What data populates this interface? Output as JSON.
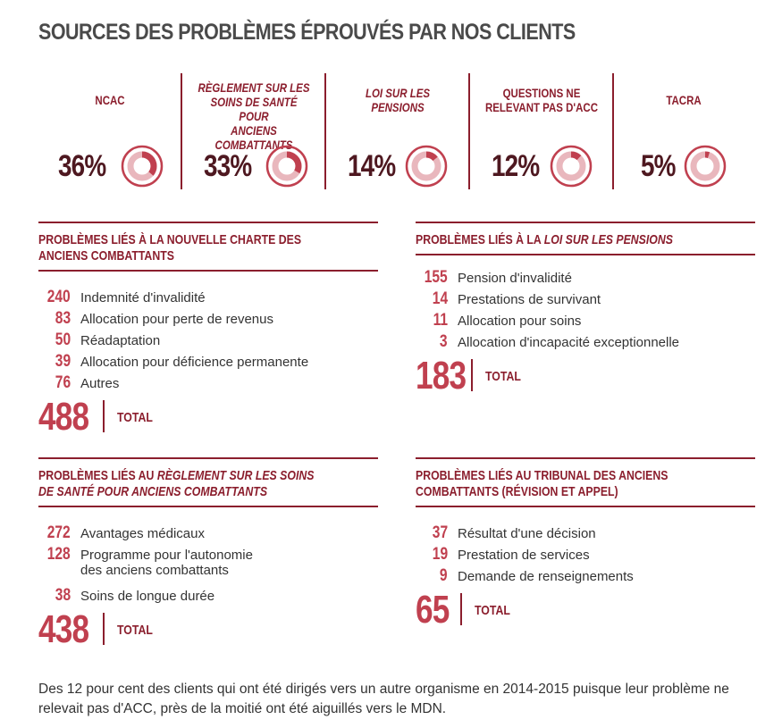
{
  "title": "SOURCES DES PROBLÈMES ÉPROUVÉS PAR NOS CLIENTS",
  "stats": [
    {
      "label_lines": [
        "NCAC"
      ],
      "percent": "36%",
      "value": 36,
      "italic": false
    },
    {
      "label_lines": [
        "RÈGLEMENT SUR LES",
        "SOINS DE SANTÉ POUR",
        "ANCIENS COMBATTANTS"
      ],
      "percent": "33%",
      "value": 33,
      "italic": true
    },
    {
      "label_lines": [
        "LOI SUR LES",
        "PENSIONS"
      ],
      "percent": "14%",
      "value": 14,
      "italic": true
    },
    {
      "label_lines": [
        "QUESTIONS NE",
        "RELEVANT PAS D'ACC"
      ],
      "percent": "12%",
      "value": 12,
      "italic": false
    },
    {
      "label_lines": [
        "TACRA"
      ],
      "percent": "5%",
      "value": 5,
      "italic": false
    }
  ],
  "colors": {
    "accent": "#8b1e2d",
    "number": "#c0404f",
    "donut": "#c0404f",
    "track": "#e9b7bd"
  },
  "sections": {
    "ncac": {
      "heading_line1": "PROBLÈMES LIÉS À LA NOUVELLE CHARTE DES",
      "heading_line2": "ANCIENS COMBATTANTS",
      "items": [
        {
          "num": "240",
          "label": "Indemnité d'invalidité"
        },
        {
          "num": "83",
          "label": "Allocation pour perte de revenus"
        },
        {
          "num": "50",
          "label": "Réadaptation"
        },
        {
          "num": "39",
          "label": "Allocation pour déficience permanente"
        },
        {
          "num": "76",
          "label": "Autres"
        }
      ],
      "total": "488",
      "total_label": "TOTAL"
    },
    "pensions": {
      "heading_prefix": "PROBLÈMES LIÉS À LA ",
      "heading_italic": "LOI SUR LES PENSIONS",
      "items": [
        {
          "num": "155",
          "label": "Pension d'invalidité"
        },
        {
          "num": "14",
          "label": "Prestations de survivant"
        },
        {
          "num": "11",
          "label": "Allocation pour soins"
        },
        {
          "num": "3",
          "label": "Allocation d'incapacité exceptionnelle"
        }
      ],
      "total": "183",
      "total_label": "TOTAL"
    },
    "reglement": {
      "heading_prefix": "PROBLÈMES LIÉS AU ",
      "heading_italic_1": "RÈGLEMENT SUR LES SOINS",
      "heading_italic_2": "DE SANTÉ POUR ANCIENS COMBATTANTS",
      "items": [
        {
          "num": "272",
          "label": "Avantages médicaux"
        },
        {
          "num": "128",
          "label": "Programme pour l'autonomie",
          "label2": "des anciens combattants"
        },
        {
          "num": "38",
          "label": "Soins de longue durée"
        }
      ],
      "total": "438",
      "total_label": "TOTAL"
    },
    "tacra": {
      "heading_line1": "PROBLÈMES LIÉS AU TRIBUNAL DES ANCIENS",
      "heading_line2": "COMBATTANTS (RÉVISION ET APPEL)",
      "items": [
        {
          "num": "37",
          "label": "Résultat d'une décision"
        },
        {
          "num": "19",
          "label": "Prestation de services"
        },
        {
          "num": "9",
          "label": "Demande de renseignements"
        }
      ],
      "total": "65",
      "total_label": "TOTAL"
    }
  },
  "note": "Des 12 pour cent des clients qui ont été dirigés vers un autre organisme en 2014-2015 puisque leur problème ne relevait pas d'ACC, près de la moitié ont été aiguillés vers le MDN."
}
